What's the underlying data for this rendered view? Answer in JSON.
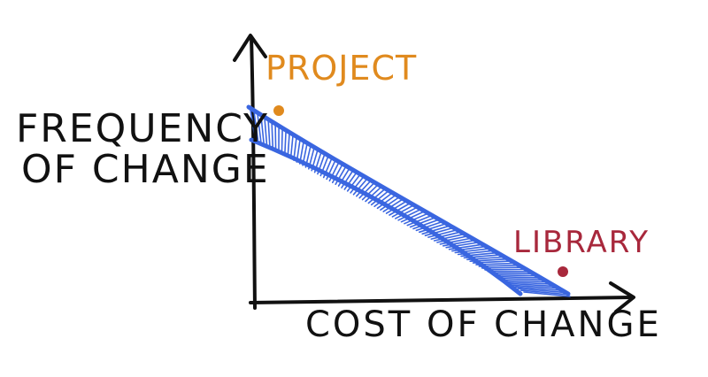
{
  "diagram": {
    "y_axis_label_line1": "FREQUENCY",
    "y_axis_label_line2": "OF CHANGE",
    "x_axis_label": "COST OF CHANGE",
    "points": [
      {
        "label": "PROJECT",
        "color": "#e08a1e"
      },
      {
        "label": "LIBRARY",
        "color": "#a8283c"
      }
    ],
    "band_color": "#3a66e0",
    "axis_color": "#111111"
  }
}
